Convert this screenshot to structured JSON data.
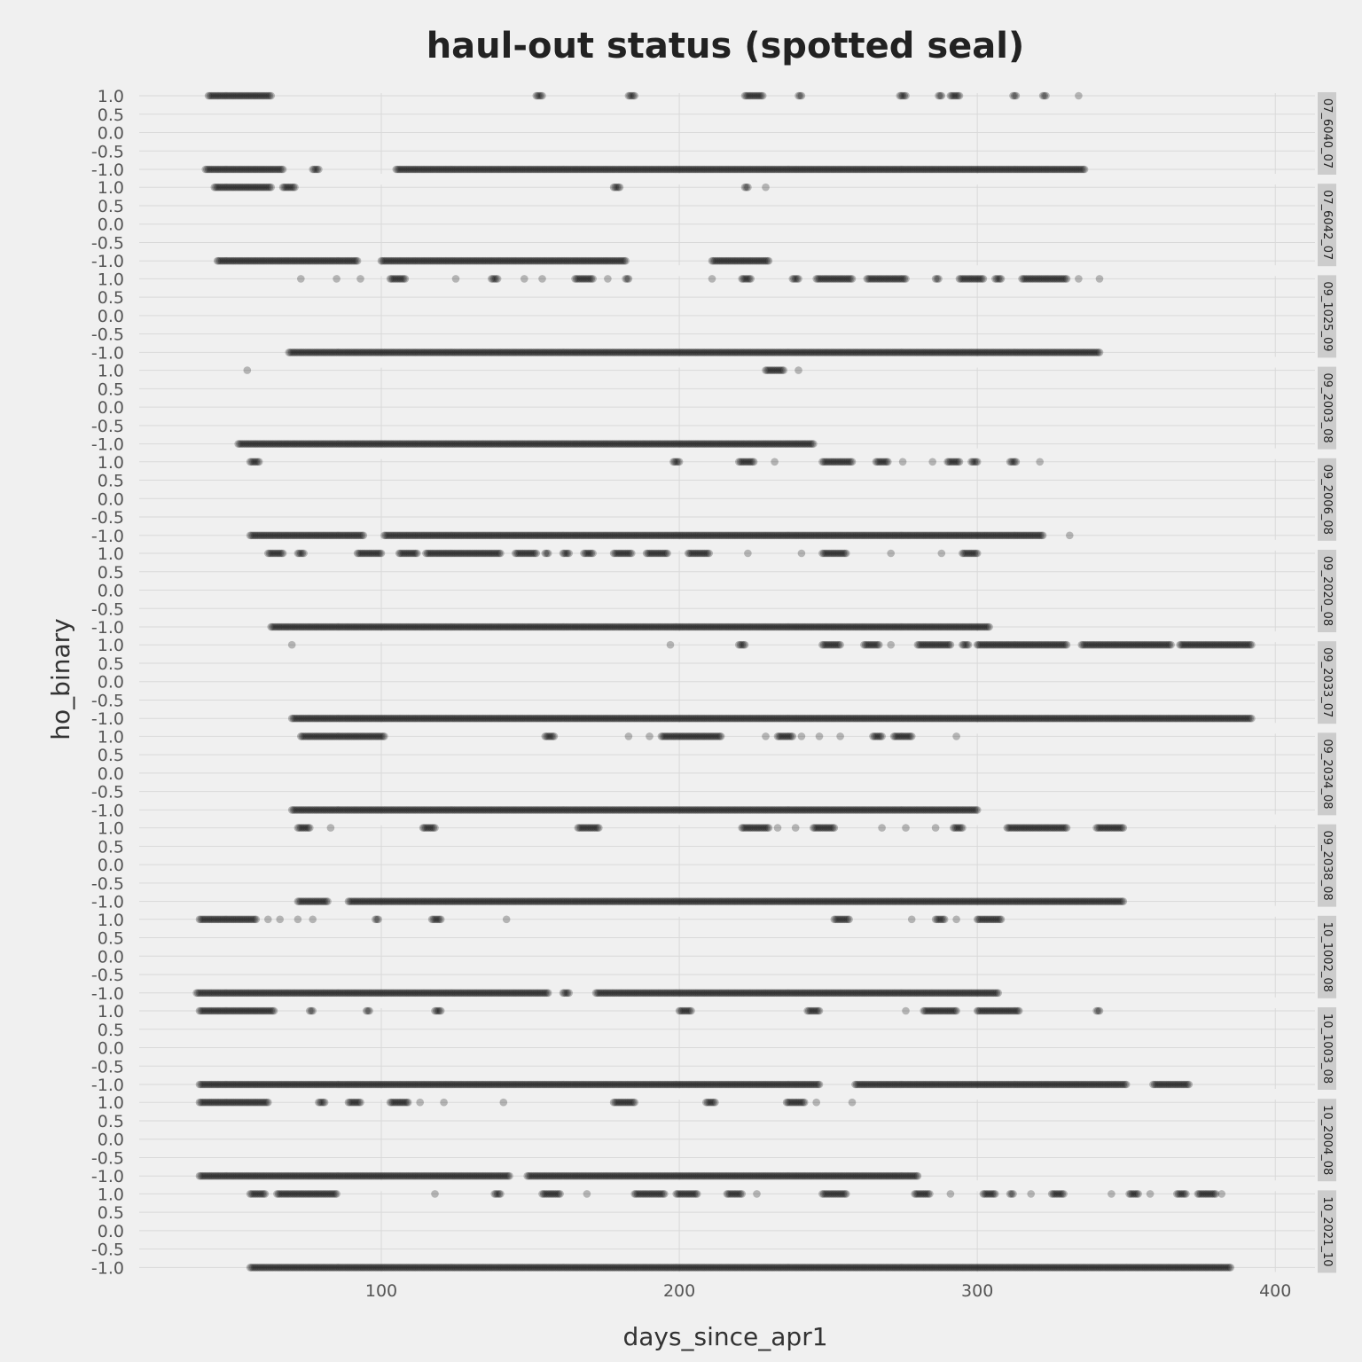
{
  "chart_data": {
    "type": "scatter",
    "title": "haul-out status (spotted seal)",
    "xlabel": "days_since_apr1",
    "ylabel": "ho_binary",
    "xlim": [
      20,
      415
    ],
    "ylim": [
      -1.05,
      1.05
    ],
    "x_ticks": [
      100,
      200,
      300,
      400
    ],
    "y_ticks": [
      1.0,
      0.5,
      0.0,
      -0.5,
      -1.0
    ],
    "y_tick_labels": [
      "1.0",
      "0.5",
      "0.0",
      "-0.5",
      "-1.0"
    ],
    "grid": true,
    "point_color": "#000000",
    "point_opacity": 0.25,
    "panels": [
      {
        "label": "07_6040_07",
        "haul_out": [
          [
            42,
            63
          ],
          [
            152,
            154
          ],
          [
            183,
            185
          ],
          [
            222,
            228
          ],
          [
            240,
            241
          ],
          [
            274,
            276
          ],
          [
            287,
            288
          ],
          [
            291,
            294
          ],
          [
            312,
            313
          ],
          [
            322,
            323
          ],
          [
            334,
            334
          ]
        ],
        "in_water": [
          [
            41,
            67
          ],
          [
            77,
            79
          ],
          [
            105,
            336
          ]
        ]
      },
      {
        "label": "07_6042_07",
        "haul_out": [
          [
            44,
            63
          ],
          [
            67,
            71
          ],
          [
            178,
            180
          ],
          [
            222,
            223
          ],
          [
            229,
            229
          ]
        ],
        "in_water": [
          [
            45,
            92
          ],
          [
            100,
            182
          ],
          [
            211,
            230
          ]
        ]
      },
      {
        "label": "09_1025_09",
        "haul_out": [
          [
            73,
            73
          ],
          [
            85,
            85
          ],
          [
            93,
            93
          ],
          [
            103,
            108
          ],
          [
            125,
            125
          ],
          [
            137,
            139
          ],
          [
            148,
            148
          ],
          [
            154,
            154
          ],
          [
            165,
            171
          ],
          [
            176,
            176
          ],
          [
            182,
            183
          ],
          [
            211,
            211
          ],
          [
            221,
            224
          ],
          [
            238,
            240
          ],
          [
            246,
            258
          ],
          [
            263,
            276
          ],
          [
            286,
            287
          ],
          [
            294,
            302
          ],
          [
            306,
            308
          ],
          [
            315,
            330
          ],
          [
            334,
            334
          ],
          [
            341,
            341
          ]
        ],
        "in_water": [
          [
            69,
            341
          ]
        ]
      },
      {
        "label": "09_2003_08",
        "haul_out": [
          [
            55,
            55
          ],
          [
            229,
            235
          ],
          [
            240,
            240
          ]
        ],
        "in_water": [
          [
            52,
            245
          ]
        ]
      },
      {
        "label": "09_2006_08",
        "haul_out": [
          [
            56,
            59
          ],
          [
            198,
            200
          ],
          [
            220,
            225
          ],
          [
            232,
            232
          ],
          [
            248,
            258
          ],
          [
            266,
            270
          ],
          [
            275,
            275
          ],
          [
            285,
            285
          ],
          [
            290,
            294
          ],
          [
            298,
            300
          ],
          [
            311,
            313
          ],
          [
            321,
            321
          ]
        ],
        "in_water": [
          [
            56,
            94
          ],
          [
            101,
            322
          ],
          [
            331,
            331
          ]
        ]
      },
      {
        "label": "09_2020_08",
        "haul_out": [
          [
            62,
            67
          ],
          [
            72,
            74
          ],
          [
            92,
            100
          ],
          [
            106,
            112
          ],
          [
            115,
            140
          ],
          [
            145,
            152
          ],
          [
            155,
            156
          ],
          [
            161,
            163
          ],
          [
            168,
            171
          ],
          [
            178,
            184
          ],
          [
            189,
            196
          ],
          [
            203,
            210
          ],
          [
            223,
            223
          ],
          [
            241,
            241
          ],
          [
            248,
            256
          ],
          [
            271,
            271
          ],
          [
            288,
            288
          ],
          [
            295,
            300
          ]
        ],
        "in_water": [
          [
            63,
            304
          ]
        ]
      },
      {
        "label": "09_2033_07",
        "haul_out": [
          [
            70,
            70
          ],
          [
            197,
            197
          ],
          [
            220,
            222
          ],
          [
            248,
            254
          ],
          [
            262,
            267
          ],
          [
            271,
            271
          ],
          [
            280,
            291
          ],
          [
            295,
            297
          ],
          [
            300,
            330
          ],
          [
            335,
            365
          ],
          [
            368,
            392
          ]
        ],
        "in_water": [
          [
            70,
            392
          ]
        ]
      },
      {
        "label": "09_2034_08",
        "haul_out": [
          [
            73,
            101
          ],
          [
            155,
            158
          ],
          [
            183,
            183
          ],
          [
            190,
            190
          ],
          [
            194,
            214
          ],
          [
            229,
            229
          ],
          [
            233,
            238
          ],
          [
            241,
            241
          ],
          [
            247,
            247
          ],
          [
            254,
            254
          ],
          [
            265,
            268
          ],
          [
            272,
            278
          ],
          [
            293,
            293
          ]
        ],
        "in_water": [
          [
            70,
            300
          ]
        ]
      },
      {
        "label": "09_2038_08",
        "haul_out": [
          [
            72,
            76
          ],
          [
            83,
            83
          ],
          [
            114,
            118
          ],
          [
            166,
            173
          ],
          [
            221,
            230
          ],
          [
            233,
            233
          ],
          [
            239,
            239
          ],
          [
            245,
            252
          ],
          [
            268,
            268
          ],
          [
            276,
            276
          ],
          [
            286,
            286
          ],
          [
            292,
            295
          ],
          [
            310,
            330
          ],
          [
            340,
            349
          ]
        ],
        "in_water": [
          [
            72,
            82
          ],
          [
            89,
            349
          ]
        ]
      },
      {
        "label": "10_1002_08",
        "haul_out": [
          [
            39,
            58
          ],
          [
            62,
            62
          ],
          [
            66,
            66
          ],
          [
            72,
            72
          ],
          [
            77,
            77
          ],
          [
            98,
            99
          ],
          [
            117,
            120
          ],
          [
            142,
            142
          ],
          [
            252,
            257
          ],
          [
            278,
            278
          ],
          [
            286,
            289
          ],
          [
            293,
            293
          ],
          [
            300,
            308
          ]
        ],
        "in_water": [
          [
            38,
            156
          ],
          [
            161,
            163
          ],
          [
            172,
            307
          ]
        ]
      },
      {
        "label": "10_1003_08",
        "haul_out": [
          [
            39,
            64
          ],
          [
            76,
            77
          ],
          [
            95,
            96
          ],
          [
            118,
            120
          ],
          [
            200,
            204
          ],
          [
            243,
            247
          ],
          [
            276,
            276
          ],
          [
            282,
            293
          ],
          [
            300,
            314
          ],
          [
            340,
            341
          ]
        ],
        "in_water": [
          [
            39,
            247
          ],
          [
            259,
            350
          ],
          [
            359,
            371
          ]
        ]
      },
      {
        "label": "10_2004_08",
        "haul_out": [
          [
            39,
            62
          ],
          [
            79,
            81
          ],
          [
            89,
            93
          ],
          [
            103,
            109
          ],
          [
            113,
            113
          ],
          [
            121,
            121
          ],
          [
            141,
            141
          ],
          [
            178,
            185
          ],
          [
            209,
            212
          ],
          [
            236,
            242
          ],
          [
            246,
            246
          ],
          [
            258,
            258
          ]
        ],
        "in_water": [
          [
            39,
            143
          ],
          [
            149,
            280
          ]
        ]
      },
      {
        "label": "10_2021_10",
        "haul_out": [
          [
            56,
            61
          ],
          [
            65,
            85
          ],
          [
            118,
            118
          ],
          [
            138,
            140
          ],
          [
            154,
            160
          ],
          [
            169,
            169
          ],
          [
            185,
            195
          ],
          [
            199,
            206
          ],
          [
            216,
            221
          ],
          [
            226,
            226
          ],
          [
            248,
            256
          ],
          [
            279,
            284
          ],
          [
            291,
            291
          ],
          [
            302,
            306
          ],
          [
            311,
            312
          ],
          [
            318,
            318
          ],
          [
            325,
            329
          ],
          [
            345,
            345
          ],
          [
            351,
            354
          ],
          [
            358,
            358
          ],
          [
            367,
            370
          ],
          [
            374,
            380
          ],
          [
            382,
            382
          ]
        ],
        "in_water": [
          [
            56,
            385
          ]
        ]
      }
    ]
  }
}
